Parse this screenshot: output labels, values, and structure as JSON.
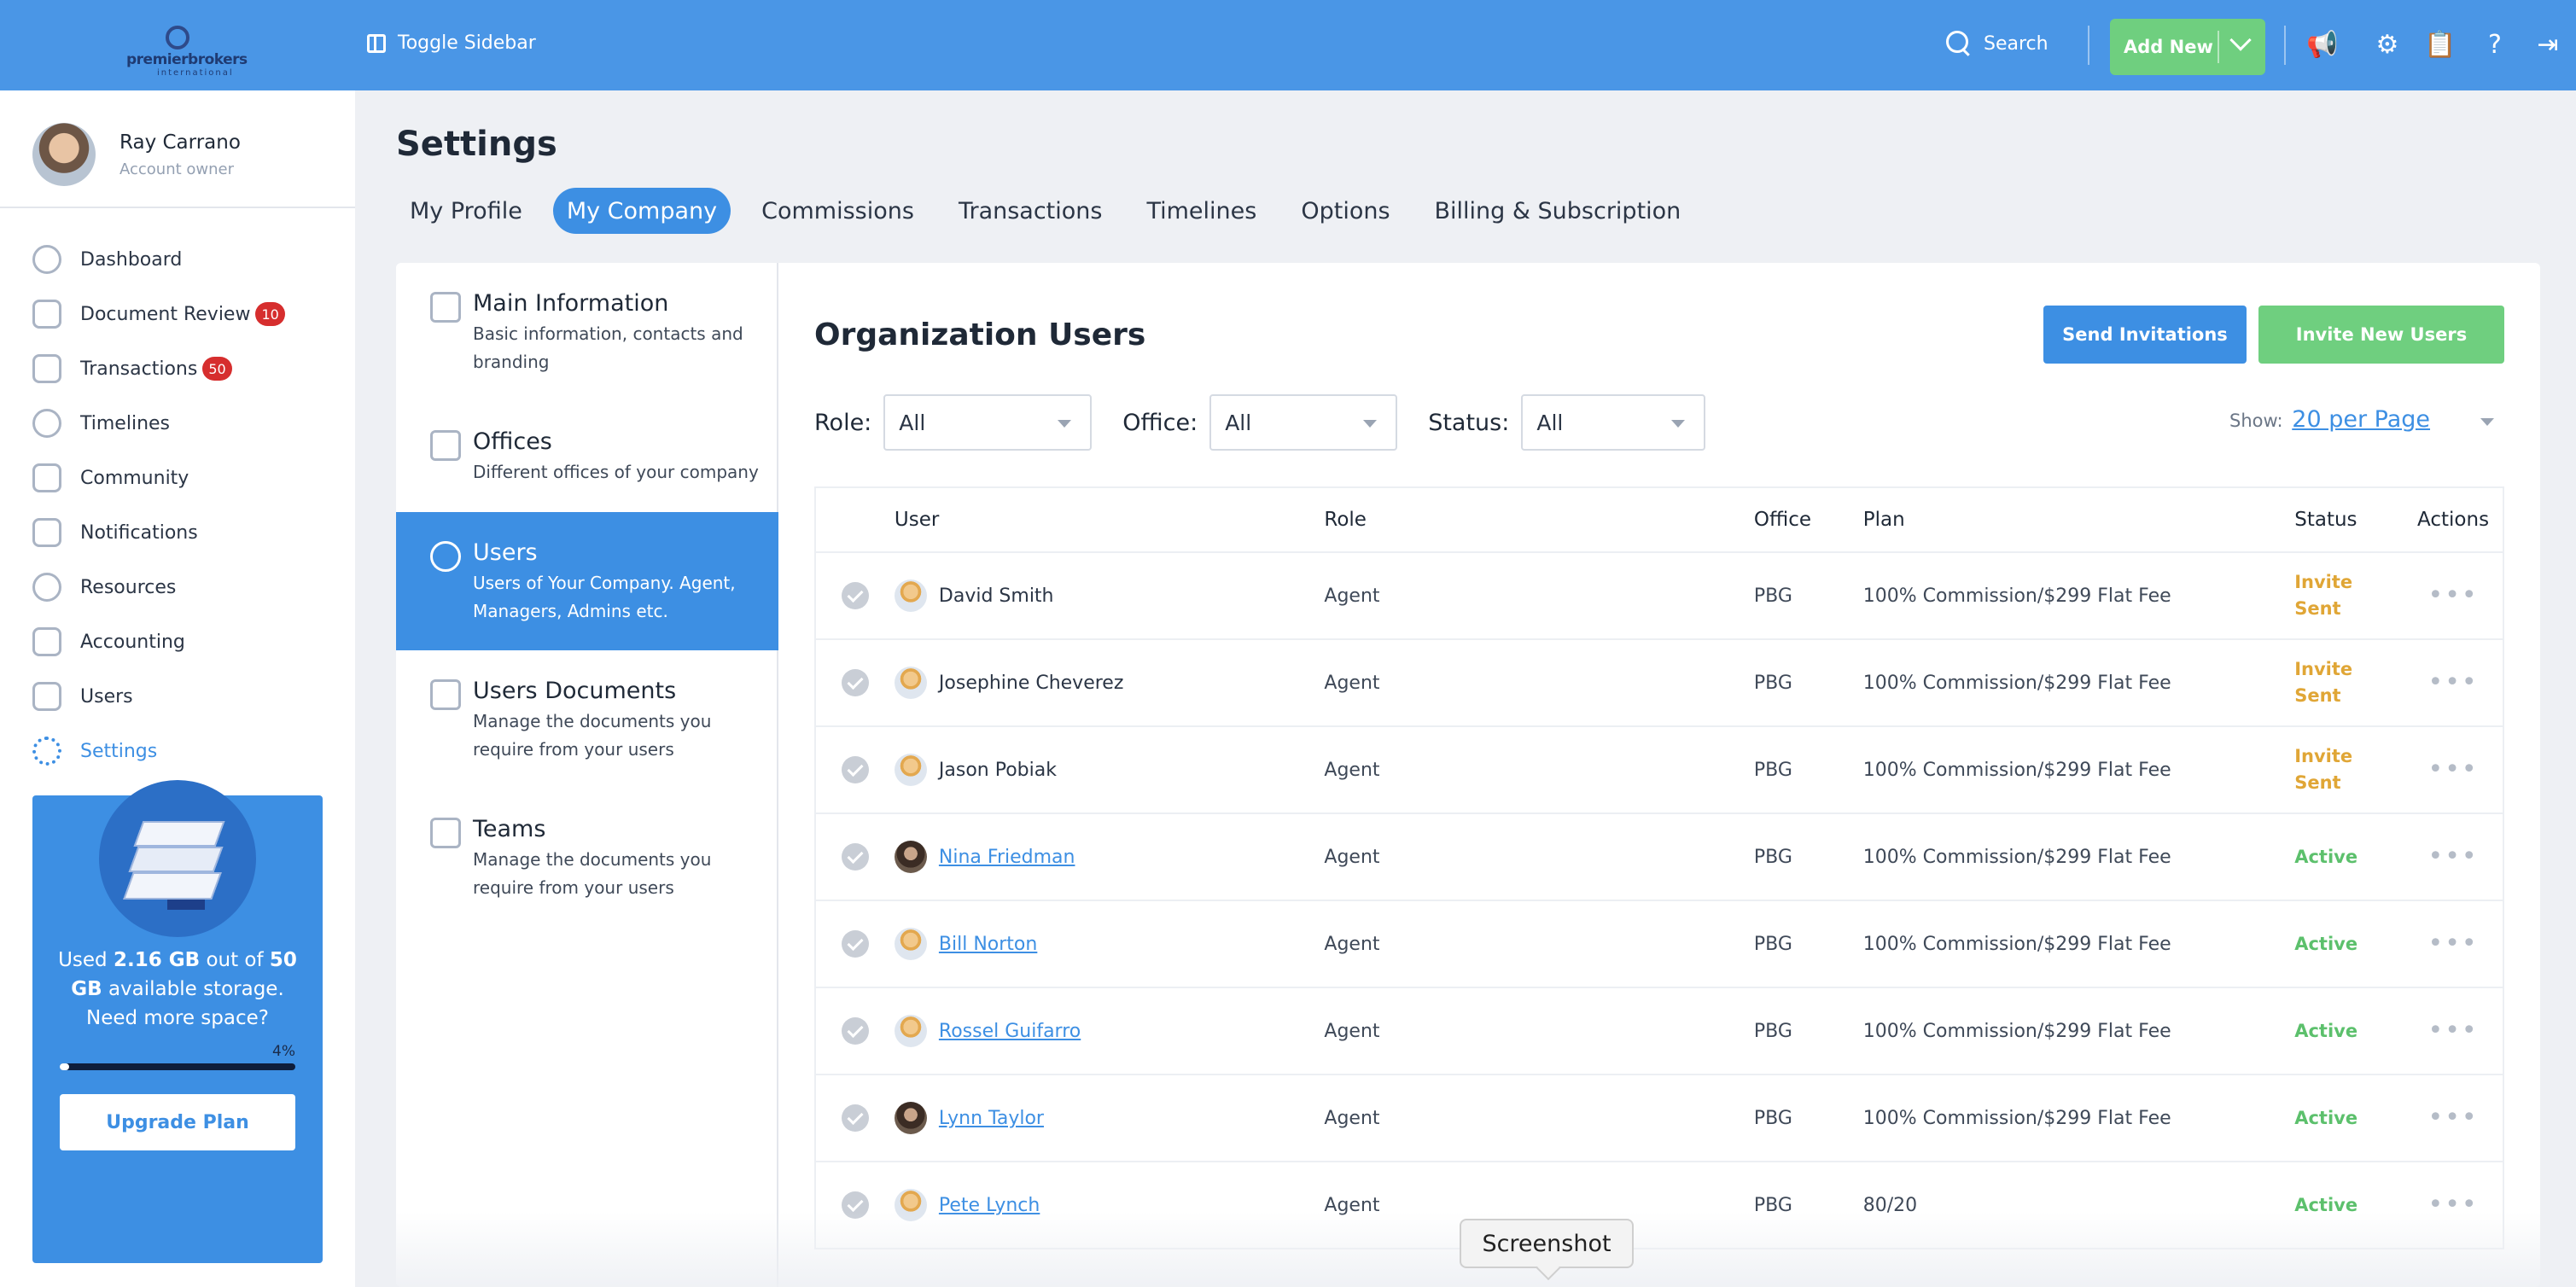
{
  "topbar": {
    "logo_text": "premierbrokers",
    "logo_sub": "international",
    "toggle_sidebar": "Toggle Sidebar",
    "search_label": "Search",
    "add_new_label": "Add New"
  },
  "user": {
    "name": "Ray Carrano",
    "role": "Account owner"
  },
  "nav": {
    "items": [
      {
        "label": "Dashboard",
        "icon": "dashboard-icon"
      },
      {
        "label": "Document Review",
        "badge": "10",
        "icon": "document-review-icon"
      },
      {
        "label": "Transactions",
        "badge": "50",
        "icon": "transactions-icon"
      },
      {
        "label": "Timelines",
        "icon": "timelines-icon"
      },
      {
        "label": "Community",
        "icon": "community-icon"
      },
      {
        "label": "Notifications",
        "icon": "notifications-icon"
      },
      {
        "label": "Resources",
        "icon": "resources-icon"
      },
      {
        "label": "Accounting",
        "icon": "accounting-icon"
      },
      {
        "label": "Users",
        "icon": "users-icon"
      },
      {
        "label": "Settings",
        "icon": "settings-icon",
        "active": true
      }
    ]
  },
  "storage": {
    "used_prefix": "Used",
    "used": "2.16 GB",
    "out_of": "out of",
    "total": "50 GB",
    "available": "available storage.",
    "need_more": "Need more space?",
    "percent_label": "4%",
    "percent_value": 4,
    "upgrade_label": "Upgrade Plan"
  },
  "page": {
    "title": "Settings",
    "tabs": [
      "My Profile",
      "My Company",
      "Commissions",
      "Transactions",
      "Timelines",
      "Options",
      "Billing & Subscription"
    ],
    "active_tab": 1
  },
  "subnav": [
    {
      "title": "Main Information",
      "desc": "Basic information, contacts and branding"
    },
    {
      "title": "Offices",
      "desc": "Different offices of your company"
    },
    {
      "title": "Users",
      "desc": "Users of Your Company. Agent, Managers, Admins etc."
    },
    {
      "title": "Users Documents",
      "desc": "Manage the documents you require from your users"
    },
    {
      "title": "Teams",
      "desc": "Manage the documents you require from your users"
    }
  ],
  "org": {
    "title": "Organization Users",
    "send_invitations": "Send Invitations",
    "invite_new": "Invite New Users",
    "filters": {
      "role_label": "Role:",
      "role_value": "All",
      "office_label": "Office:",
      "office_value": "All",
      "status_label": "Status:",
      "status_value": "All"
    },
    "show_label": "Show:",
    "show_value": "20 per Page",
    "columns": [
      "User",
      "Role",
      "Office",
      "Plan",
      "Status",
      "Actions"
    ],
    "rows": [
      {
        "name": "David Smith",
        "role": "Agent",
        "office": "PBG",
        "plan": "100% Commission/$299 Flat Fee",
        "status": "Invite Sent",
        "linked": false,
        "photo": false
      },
      {
        "name": "Josephine Cheverez",
        "role": "Agent",
        "office": "PBG",
        "plan": "100% Commission/$299 Flat Fee",
        "status": "Invite Sent",
        "linked": false,
        "photo": false
      },
      {
        "name": "Jason Pobiak",
        "role": "Agent",
        "office": "PBG",
        "plan": "100% Commission/$299 Flat Fee",
        "status": "Invite Sent",
        "linked": false,
        "photo": false
      },
      {
        "name": "Nina Friedman",
        "role": "Agent",
        "office": "PBG",
        "plan": "100% Commission/$299 Flat Fee",
        "status": "Active",
        "linked": true,
        "photo": true
      },
      {
        "name": "Bill Norton",
        "role": "Agent",
        "office": "PBG",
        "plan": "100% Commission/$299 Flat Fee",
        "status": "Active",
        "linked": true,
        "photo": false
      },
      {
        "name": "Rossel Guifarro",
        "role": "Agent",
        "office": "PBG",
        "plan": "100% Commission/$299 Flat Fee",
        "status": "Active",
        "linked": true,
        "photo": false
      },
      {
        "name": "Lynn Taylor",
        "role": "Agent",
        "office": "PBG",
        "plan": "100% Commission/$299 Flat Fee",
        "status": "Active",
        "linked": true,
        "photo": true
      },
      {
        "name": "Pete Lynch",
        "role": "Agent",
        "office": "PBG",
        "plan": "80/20",
        "status": "Active",
        "linked": true,
        "photo": false
      }
    ]
  },
  "tooltip": "Screenshot",
  "colors": {
    "primary": "#3d8fe3",
    "topbar": "#4a96e6",
    "success": "#6fcf7f",
    "warning": "#e0a636",
    "badge": "#d62e2e"
  }
}
